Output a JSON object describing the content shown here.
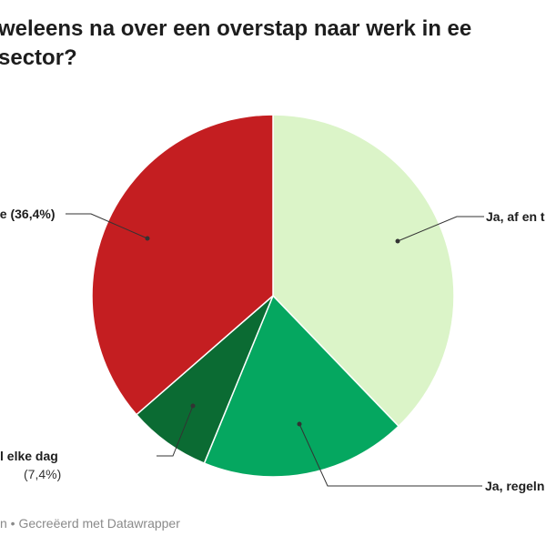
{
  "title": {
    "line1": "weleens na over een overstap naar werk in ee",
    "line2": "sector?"
  },
  "footer": "n • Gecreëerd met Datawrapper",
  "colors": {
    "nee": "#c41e21",
    "elke_dag": "#0b6b33",
    "regelmatig": "#05a760",
    "af_en_toe": "#dbf4c8",
    "leader": "#333333"
  },
  "chart_data": {
    "type": "pie",
    "title": "",
    "start_angle_deg": 0,
    "direction": "clockwise",
    "slices": [
      {
        "key": "af_en_toe",
        "label": "Ja, af en t",
        "pct": "",
        "value": 37.8
      },
      {
        "key": "regelmatig",
        "label": "Ja, regeln",
        "pct": "",
        "value": 18.4
      },
      {
        "key": "elke_dag",
        "label": "l elke dag",
        "pct": "(7,4%)",
        "value": 7.4
      },
      {
        "key": "nee",
        "label": "ee (36,4%)",
        "pct": "",
        "value": 36.4
      }
    ]
  }
}
